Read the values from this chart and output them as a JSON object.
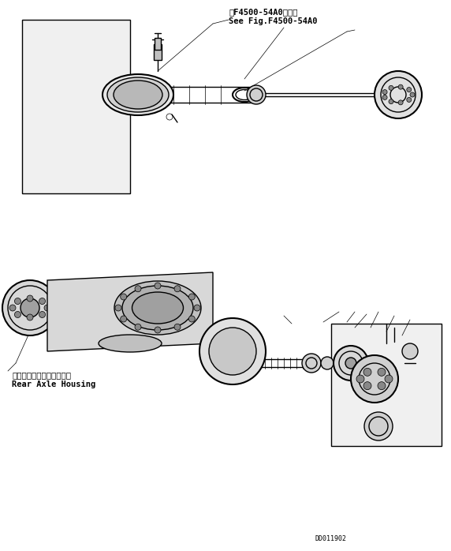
{
  "background_color": "#ffffff",
  "line_color": "#000000",
  "figure_width": 5.72,
  "figure_height": 6.98,
  "dpi": 100,
  "annotation1_line1": "笮F4500-54A0図参照",
  "annotation1_line2": "See Fig.F4500-54A0",
  "annotation2_line1": "リヤーアクスルハウジング",
  "annotation2_line2": "Rear Axle Housing",
  "part_number": "DD011902",
  "lw": 1.0,
  "thin_lw": 0.5,
  "thick_lw": 1.5
}
